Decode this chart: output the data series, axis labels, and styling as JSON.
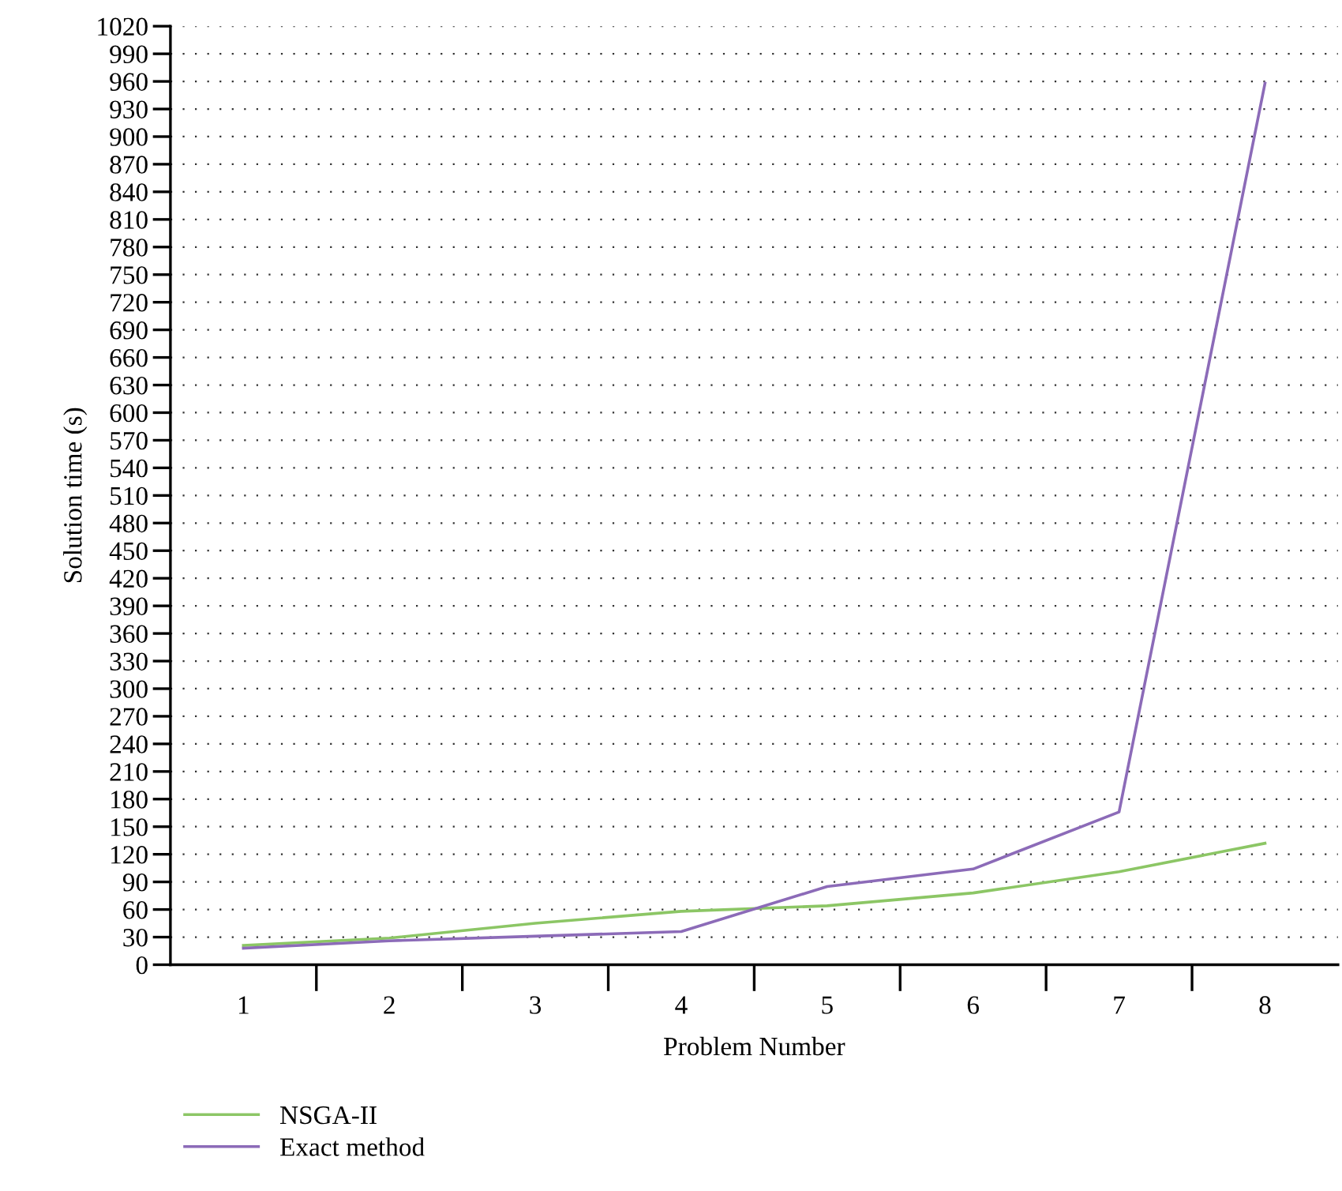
{
  "chart_data": {
    "type": "line",
    "xlabel": "Problem Number",
    "ylabel": "Solution time (s)",
    "categories": [
      "1",
      "2",
      "3",
      "4",
      "5",
      "6",
      "7",
      "8"
    ],
    "series": [
      {
        "name": "NSGA-II",
        "color": "#8cc665",
        "values": [
          21,
          29,
          45,
          58,
          64,
          78,
          101,
          132
        ]
      },
      {
        "name": "Exact method",
        "color": "#8c6bb8",
        "values": [
          18,
          26,
          31,
          36,
          85,
          104,
          166,
          958
        ]
      }
    ],
    "ylim": [
      0,
      1020
    ],
    "yticks": [
      0,
      30,
      60,
      90,
      120,
      150,
      180,
      210,
      240,
      270,
      300,
      330,
      360,
      390,
      420,
      450,
      480,
      510,
      540,
      570,
      600,
      630,
      660,
      690,
      720,
      750,
      780,
      810,
      840,
      870,
      900,
      930,
      960,
      990,
      1020
    ],
    "grid": "y",
    "legend": "bottom left",
    "line_style": "solid",
    "marker": "none"
  }
}
